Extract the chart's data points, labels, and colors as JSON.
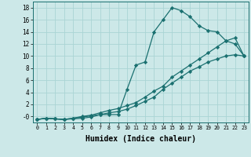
{
  "xlabel": "Humidex (Indice chaleur)",
  "x": [
    0,
    1,
    2,
    3,
    4,
    5,
    6,
    7,
    8,
    9,
    10,
    11,
    12,
    13,
    14,
    15,
    16,
    17,
    18,
    19,
    20,
    21,
    22,
    23
  ],
  "line1": [
    -0.5,
    -0.3,
    -0.4,
    -0.5,
    -0.4,
    -0.3,
    -0.1,
    0.3,
    0.3,
    0.3,
    4.5,
    8.5,
    9.0,
    14.0,
    16.0,
    18.0,
    17.5,
    16.5,
    15.0,
    14.2,
    14.0,
    12.5,
    12.0,
    10.0
  ],
  "line2": [
    -0.5,
    -0.3,
    -0.4,
    -0.5,
    -0.3,
    -0.1,
    0.1,
    0.3,
    0.6,
    0.8,
    1.2,
    1.8,
    2.5,
    3.2,
    4.5,
    5.5,
    6.5,
    7.5,
    8.2,
    9.0,
    9.5,
    10.0,
    10.2,
    10.0
  ],
  "line3": [
    -0.5,
    -0.3,
    -0.4,
    -0.5,
    -0.3,
    0.0,
    0.2,
    0.6,
    1.0,
    1.3,
    1.8,
    2.3,
    3.2,
    4.2,
    5.0,
    6.5,
    7.5,
    8.5,
    9.5,
    10.5,
    11.5,
    12.5,
    13.0,
    10.0
  ],
  "line_color": "#1a7070",
  "bg_color": "#cce8e8",
  "grid_color": "#aad4d4",
  "ylim": [
    -1,
    19
  ],
  "xlim": [
    -0.5,
    23.5
  ],
  "yticks": [
    0,
    2,
    4,
    6,
    8,
    10,
    12,
    14,
    16,
    18
  ],
  "xticks": [
    0,
    1,
    2,
    3,
    4,
    5,
    6,
    7,
    8,
    9,
    10,
    11,
    12,
    13,
    14,
    15,
    16,
    17,
    18,
    19,
    20,
    21,
    22,
    23
  ],
  "ytick_labels": [
    "-0",
    "2",
    "4",
    "6",
    "8",
    "10",
    "12",
    "14",
    "16",
    "18"
  ],
  "marker": "D",
  "markersize": 2.2,
  "linewidth": 0.9
}
